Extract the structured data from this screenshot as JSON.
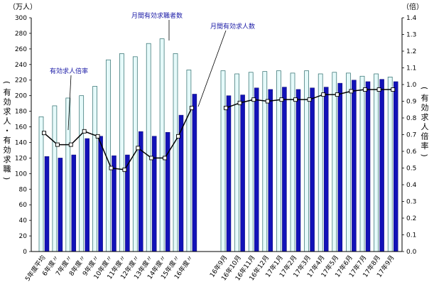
{
  "chart_data": {
    "type": "bar",
    "left_axis": {
      "unit": "（万人）",
      "label": "（有効求人・有効求職）",
      "min": 0,
      "max": 300,
      "step": 20
    },
    "right_axis": {
      "unit": "（倍）",
      "label": "（有効求人倍率）",
      "min": 0,
      "max": 1.4,
      "step": 0.1
    },
    "categories": [
      "5年度平均",
      "6年度〃",
      "7年度〃",
      "8年度〃",
      "9年度〃",
      "10年度〃",
      "11年度〃",
      "12年度〃",
      "13年度〃",
      "14年度〃",
      "15年度〃",
      "16年度〃",
      "16年9月",
      "16年10月",
      "16年11月",
      "16年12月",
      "17年1月",
      "17年2月",
      "17年3月",
      "17年4月",
      "17年5月",
      "17年6月",
      "17年7月",
      "17年8月",
      "17年9月"
    ],
    "series": [
      {
        "name": "月間有効求職者数",
        "kind": "bar",
        "color": "#e6fafa",
        "values": [
          173,
          187,
          197,
          200,
          212,
          246,
          254,
          250,
          267,
          273,
          254,
          233,
          232,
          228,
          230,
          231,
          232,
          229,
          232,
          228,
          230,
          229,
          225,
          228,
          224
        ]
      },
      {
        "name": "月間有効求人数",
        "kind": "bar",
        "color": "#1212b8",
        "values": [
          122,
          120,
          124,
          145,
          148,
          123,
          124,
          154,
          148,
          153,
          175,
          202,
          200,
          201,
          210,
          208,
          211,
          208,
          210,
          211,
          216,
          220,
          218,
          221,
          218
        ]
      },
      {
        "name": "有効求人倍率",
        "kind": "line",
        "axis": "right",
        "color": "#000000",
        "values": [
          0.71,
          0.64,
          0.64,
          0.72,
          0.69,
          0.5,
          0.49,
          0.62,
          0.56,
          0.56,
          0.69,
          0.86,
          0.86,
          0.89,
          0.91,
          0.9,
          0.91,
          0.91,
          0.91,
          0.94,
          0.94,
          0.96,
          0.97,
          0.97,
          0.97
        ]
      }
    ]
  }
}
